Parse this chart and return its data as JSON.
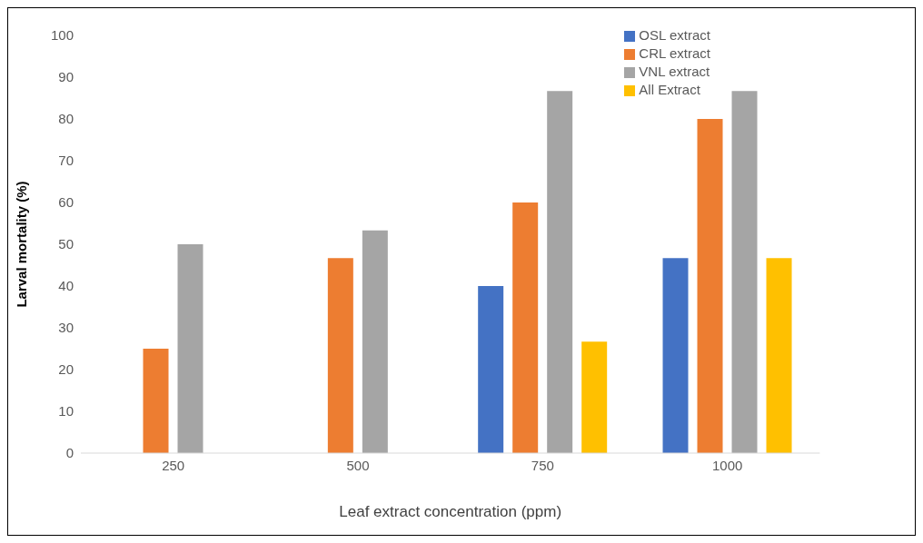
{
  "chart_data": {
    "type": "bar",
    "xlabel": "Leaf extract concentration (ppm)",
    "ylabel": "Larval mortality (%)",
    "categories": [
      "250",
      "500",
      "750",
      "1000"
    ],
    "series": [
      {
        "name": "OSL extract",
        "color": "#4472c4",
        "values": [
          0,
          0,
          40,
          46.7
        ]
      },
      {
        "name": "CRL extract",
        "color": "#ed7d31",
        "values": [
          25,
          46.7,
          60,
          80
        ]
      },
      {
        "name": "VNL extract",
        "color": "#a5a5a5",
        "values": [
          50,
          53.3,
          86.7,
          86.7
        ]
      },
      {
        "name": "All Extract",
        "color": "#ffc000",
        "values": [
          0,
          0,
          26.7,
          46.7
        ]
      }
    ],
    "ylim": [
      0,
      100
    ],
    "yticks": [
      0,
      10,
      20,
      30,
      40,
      50,
      60,
      70,
      80,
      90,
      100
    ],
    "grid": false,
    "legend": "top right"
  }
}
